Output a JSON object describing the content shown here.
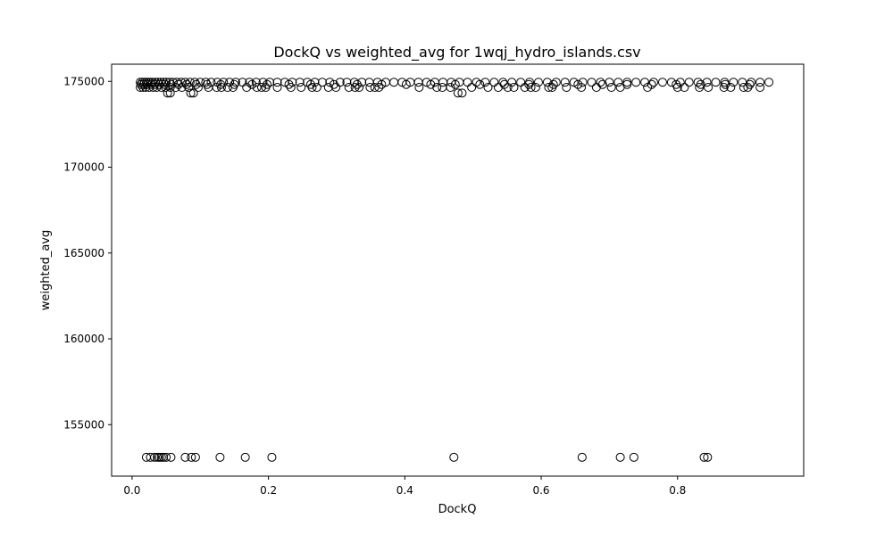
{
  "chart_data": {
    "type": "scatter",
    "title": "DockQ vs weighted_avg for 1wqj_hydro_islands.csv",
    "xlabel": "DockQ",
    "ylabel": "weighted_avg",
    "xlim": [
      -0.03,
      0.985
    ],
    "ylim": [
      152000,
      176000
    ],
    "x_ticks": [
      0.0,
      0.2,
      0.4,
      0.6,
      0.8
    ],
    "x_tick_labels": [
      "0.0",
      "0.2",
      "0.4",
      "0.6",
      "0.8"
    ],
    "y_ticks": [
      155000,
      160000,
      165000,
      170000,
      175000
    ],
    "y_tick_labels": [
      "155000",
      "160000",
      "165000",
      "170000",
      "175000"
    ],
    "marker": "open-circle",
    "marker_color": "#000000",
    "grid": false,
    "points": [
      {
        "x": 0.012,
        "y": 174950
      },
      {
        "x": 0.015,
        "y": 174950
      },
      {
        "x": 0.018,
        "y": 174950
      },
      {
        "x": 0.021,
        "y": 174950
      },
      {
        "x": 0.024,
        "y": 174950
      },
      {
        "x": 0.027,
        "y": 174950
      },
      {
        "x": 0.03,
        "y": 174950
      },
      {
        "x": 0.034,
        "y": 174950
      },
      {
        "x": 0.038,
        "y": 174950
      },
      {
        "x": 0.042,
        "y": 174950
      },
      {
        "x": 0.046,
        "y": 174950
      },
      {
        "x": 0.05,
        "y": 174950
      },
      {
        "x": 0.055,
        "y": 174950
      },
      {
        "x": 0.06,
        "y": 174950
      },
      {
        "x": 0.066,
        "y": 174950
      },
      {
        "x": 0.072,
        "y": 174950
      },
      {
        "x": 0.078,
        "y": 174950
      },
      {
        "x": 0.085,
        "y": 174950
      },
      {
        "x": 0.092,
        "y": 174950
      },
      {
        "x": 0.1,
        "y": 174950
      },
      {
        "x": 0.108,
        "y": 174950
      },
      {
        "x": 0.116,
        "y": 174950
      },
      {
        "x": 0.125,
        "y": 174950
      },
      {
        "x": 0.134,
        "y": 174950
      },
      {
        "x": 0.143,
        "y": 174950
      },
      {
        "x": 0.152,
        "y": 174950
      },
      {
        "x": 0.162,
        "y": 174950
      },
      {
        "x": 0.172,
        "y": 174950
      },
      {
        "x": 0.182,
        "y": 174950
      },
      {
        "x": 0.192,
        "y": 174950
      },
      {
        "x": 0.202,
        "y": 174950
      },
      {
        "x": 0.213,
        "y": 174950
      },
      {
        "x": 0.224,
        "y": 174950
      },
      {
        "x": 0.235,
        "y": 174950
      },
      {
        "x": 0.246,
        "y": 174950
      },
      {
        "x": 0.257,
        "y": 174950
      },
      {
        "x": 0.268,
        "y": 174950
      },
      {
        "x": 0.279,
        "y": 174950
      },
      {
        "x": 0.29,
        "y": 174950
      },
      {
        "x": 0.305,
        "y": 174950
      },
      {
        "x": 0.315,
        "y": 174950
      },
      {
        "x": 0.326,
        "y": 174950
      },
      {
        "x": 0.337,
        "y": 174950
      },
      {
        "x": 0.348,
        "y": 174950
      },
      {
        "x": 0.36,
        "y": 174950
      },
      {
        "x": 0.372,
        "y": 174950
      },
      {
        "x": 0.384,
        "y": 174950
      },
      {
        "x": 0.396,
        "y": 174950
      },
      {
        "x": 0.408,
        "y": 174950
      },
      {
        "x": 0.42,
        "y": 174950
      },
      {
        "x": 0.432,
        "y": 174950
      },
      {
        "x": 0.444,
        "y": 174950
      },
      {
        "x": 0.456,
        "y": 174950
      },
      {
        "x": 0.468,
        "y": 174950
      },
      {
        "x": 0.48,
        "y": 174950
      },
      {
        "x": 0.492,
        "y": 174950
      },
      {
        "x": 0.505,
        "y": 174950
      },
      {
        "x": 0.518,
        "y": 174950
      },
      {
        "x": 0.531,
        "y": 174950
      },
      {
        "x": 0.544,
        "y": 174950
      },
      {
        "x": 0.557,
        "y": 174950
      },
      {
        "x": 0.57,
        "y": 174950
      },
      {
        "x": 0.583,
        "y": 174950
      },
      {
        "x": 0.596,
        "y": 174950
      },
      {
        "x": 0.609,
        "y": 174950
      },
      {
        "x": 0.622,
        "y": 174950
      },
      {
        "x": 0.635,
        "y": 174950
      },
      {
        "x": 0.648,
        "y": 174950
      },
      {
        "x": 0.661,
        "y": 174950
      },
      {
        "x": 0.674,
        "y": 174950
      },
      {
        "x": 0.687,
        "y": 174950
      },
      {
        "x": 0.7,
        "y": 174950
      },
      {
        "x": 0.713,
        "y": 174950
      },
      {
        "x": 0.726,
        "y": 174950
      },
      {
        "x": 0.739,
        "y": 174950
      },
      {
        "x": 0.752,
        "y": 174950
      },
      {
        "x": 0.765,
        "y": 174950
      },
      {
        "x": 0.778,
        "y": 174950
      },
      {
        "x": 0.791,
        "y": 174950
      },
      {
        "x": 0.804,
        "y": 174950
      },
      {
        "x": 0.817,
        "y": 174950
      },
      {
        "x": 0.83,
        "y": 174950
      },
      {
        "x": 0.843,
        "y": 174950
      },
      {
        "x": 0.856,
        "y": 174950
      },
      {
        "x": 0.869,
        "y": 174950
      },
      {
        "x": 0.882,
        "y": 174950
      },
      {
        "x": 0.895,
        "y": 174950
      },
      {
        "x": 0.908,
        "y": 174950
      },
      {
        "x": 0.921,
        "y": 174950
      },
      {
        "x": 0.934,
        "y": 174950
      },
      {
        "x": 0.013,
        "y": 174820
      },
      {
        "x": 0.017,
        "y": 174820
      },
      {
        "x": 0.022,
        "y": 174820
      },
      {
        "x": 0.028,
        "y": 174820
      },
      {
        "x": 0.033,
        "y": 174820
      },
      {
        "x": 0.04,
        "y": 174820
      },
      {
        "x": 0.048,
        "y": 174820
      },
      {
        "x": 0.057,
        "y": 174820
      },
      {
        "x": 0.068,
        "y": 174820
      },
      {
        "x": 0.08,
        "y": 174820
      },
      {
        "x": 0.094,
        "y": 174820
      },
      {
        "x": 0.11,
        "y": 174820
      },
      {
        "x": 0.13,
        "y": 174820
      },
      {
        "x": 0.15,
        "y": 174820
      },
      {
        "x": 0.176,
        "y": 174820
      },
      {
        "x": 0.198,
        "y": 174820
      },
      {
        "x": 0.23,
        "y": 174820
      },
      {
        "x": 0.262,
        "y": 174820
      },
      {
        "x": 0.296,
        "y": 174820
      },
      {
        "x": 0.33,
        "y": 174820
      },
      {
        "x": 0.366,
        "y": 174820
      },
      {
        "x": 0.402,
        "y": 174820
      },
      {
        "x": 0.438,
        "y": 174820
      },
      {
        "x": 0.474,
        "y": 174820
      },
      {
        "x": 0.51,
        "y": 174820
      },
      {
        "x": 0.546,
        "y": 174820
      },
      {
        "x": 0.582,
        "y": 174820
      },
      {
        "x": 0.618,
        "y": 174820
      },
      {
        "x": 0.654,
        "y": 174820
      },
      {
        "x": 0.69,
        "y": 174820
      },
      {
        "x": 0.726,
        "y": 174820
      },
      {
        "x": 0.762,
        "y": 174820
      },
      {
        "x": 0.798,
        "y": 174820
      },
      {
        "x": 0.834,
        "y": 174820
      },
      {
        "x": 0.87,
        "y": 174820
      },
      {
        "x": 0.906,
        "y": 174820
      },
      {
        "x": 0.012,
        "y": 174650
      },
      {
        "x": 0.016,
        "y": 174650
      },
      {
        "x": 0.02,
        "y": 174650
      },
      {
        "x": 0.025,
        "y": 174650
      },
      {
        "x": 0.031,
        "y": 174650
      },
      {
        "x": 0.036,
        "y": 174650
      },
      {
        "x": 0.043,
        "y": 174650
      },
      {
        "x": 0.049,
        "y": 174650
      },
      {
        "x": 0.056,
        "y": 174650
      },
      {
        "x": 0.064,
        "y": 174650
      },
      {
        "x": 0.073,
        "y": 174650
      },
      {
        "x": 0.083,
        "y": 174650
      },
      {
        "x": 0.097,
        "y": 174650
      },
      {
        "x": 0.112,
        "y": 174650
      },
      {
        "x": 0.124,
        "y": 174650
      },
      {
        "x": 0.131,
        "y": 174650
      },
      {
        "x": 0.14,
        "y": 174650
      },
      {
        "x": 0.148,
        "y": 174650
      },
      {
        "x": 0.168,
        "y": 174650
      },
      {
        "x": 0.183,
        "y": 174650
      },
      {
        "x": 0.19,
        "y": 174650
      },
      {
        "x": 0.196,
        "y": 174650
      },
      {
        "x": 0.213,
        "y": 174650
      },
      {
        "x": 0.233,
        "y": 174650
      },
      {
        "x": 0.248,
        "y": 174650
      },
      {
        "x": 0.264,
        "y": 174650
      },
      {
        "x": 0.271,
        "y": 174650
      },
      {
        "x": 0.288,
        "y": 174650
      },
      {
        "x": 0.299,
        "y": 174650
      },
      {
        "x": 0.318,
        "y": 174650
      },
      {
        "x": 0.327,
        "y": 174650
      },
      {
        "x": 0.333,
        "y": 174650
      },
      {
        "x": 0.349,
        "y": 174650
      },
      {
        "x": 0.356,
        "y": 174650
      },
      {
        "x": 0.362,
        "y": 174650
      },
      {
        "x": 0.421,
        "y": 174650
      },
      {
        "x": 0.447,
        "y": 174650
      },
      {
        "x": 0.455,
        "y": 174650
      },
      {
        "x": 0.467,
        "y": 174650
      },
      {
        "x": 0.498,
        "y": 174650
      },
      {
        "x": 0.522,
        "y": 174650
      },
      {
        "x": 0.537,
        "y": 174650
      },
      {
        "x": 0.551,
        "y": 174650
      },
      {
        "x": 0.56,
        "y": 174650
      },
      {
        "x": 0.576,
        "y": 174650
      },
      {
        "x": 0.585,
        "y": 174650
      },
      {
        "x": 0.592,
        "y": 174650
      },
      {
        "x": 0.611,
        "y": 174650
      },
      {
        "x": 0.616,
        "y": 174650
      },
      {
        "x": 0.637,
        "y": 174650
      },
      {
        "x": 0.659,
        "y": 174650
      },
      {
        "x": 0.681,
        "y": 174650
      },
      {
        "x": 0.703,
        "y": 174650
      },
      {
        "x": 0.716,
        "y": 174650
      },
      {
        "x": 0.756,
        "y": 174650
      },
      {
        "x": 0.8,
        "y": 174650
      },
      {
        "x": 0.81,
        "y": 174650
      },
      {
        "x": 0.832,
        "y": 174650
      },
      {
        "x": 0.845,
        "y": 174650
      },
      {
        "x": 0.868,
        "y": 174650
      },
      {
        "x": 0.878,
        "y": 174650
      },
      {
        "x": 0.897,
        "y": 174650
      },
      {
        "x": 0.903,
        "y": 174650
      },
      {
        "x": 0.921,
        "y": 174650
      },
      {
        "x": 0.052,
        "y": 174320
      },
      {
        "x": 0.056,
        "y": 174320
      },
      {
        "x": 0.086,
        "y": 174320
      },
      {
        "x": 0.09,
        "y": 174320
      },
      {
        "x": 0.478,
        "y": 174320
      },
      {
        "x": 0.484,
        "y": 174320
      },
      {
        "x": 0.021,
        "y": 153100
      },
      {
        "x": 0.027,
        "y": 153100
      },
      {
        "x": 0.033,
        "y": 153100
      },
      {
        "x": 0.037,
        "y": 153100
      },
      {
        "x": 0.04,
        "y": 153100
      },
      {
        "x": 0.043,
        "y": 153100
      },
      {
        "x": 0.046,
        "y": 153100
      },
      {
        "x": 0.05,
        "y": 153100
      },
      {
        "x": 0.057,
        "y": 153100
      },
      {
        "x": 0.078,
        "y": 153100
      },
      {
        "x": 0.087,
        "y": 153100
      },
      {
        "x": 0.093,
        "y": 153100
      },
      {
        "x": 0.129,
        "y": 153100
      },
      {
        "x": 0.166,
        "y": 153100
      },
      {
        "x": 0.205,
        "y": 153100
      },
      {
        "x": 0.472,
        "y": 153100
      },
      {
        "x": 0.66,
        "y": 153100
      },
      {
        "x": 0.716,
        "y": 153100
      },
      {
        "x": 0.736,
        "y": 153100
      },
      {
        "x": 0.839,
        "y": 153100
      },
      {
        "x": 0.844,
        "y": 153100
      }
    ]
  }
}
